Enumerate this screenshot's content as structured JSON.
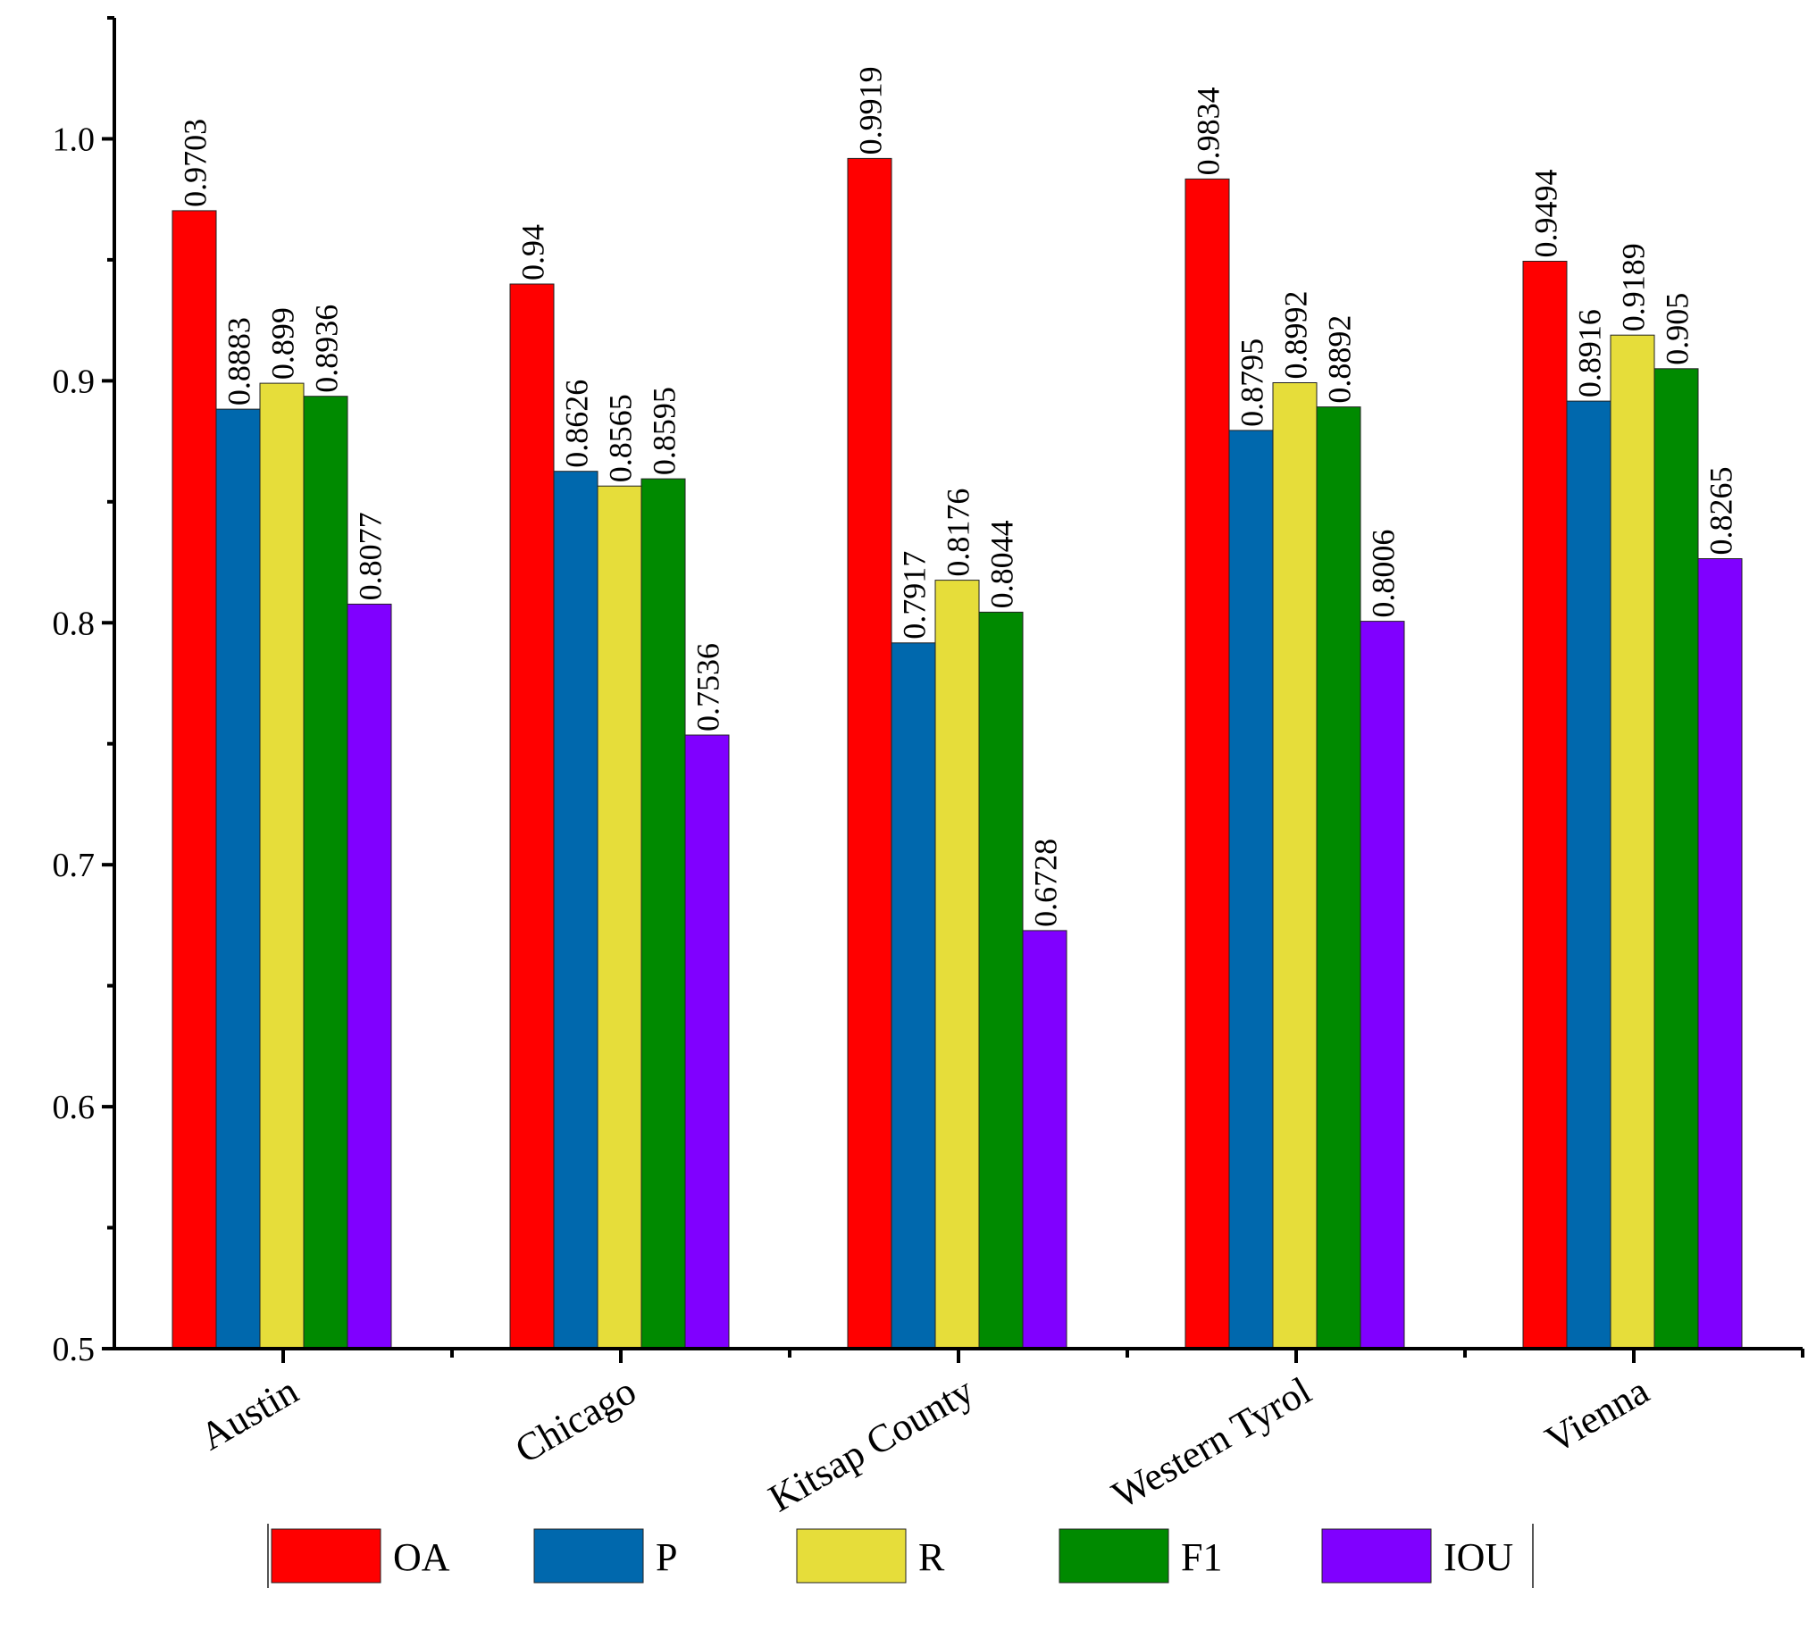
{
  "chart_data": {
    "type": "bar",
    "title": "",
    "xlabel": "",
    "ylabel": "",
    "categories": [
      "Austin",
      "Chicago",
      "Kitsap County",
      "Western Tyrol",
      "Vienna"
    ],
    "series": [
      {
        "name": "OA",
        "color": "#ff0000",
        "values": [
          0.9703,
          0.94,
          0.9919,
          0.9834,
          0.9494
        ]
      },
      {
        "name": "P",
        "color": "#0068ad",
        "values": [
          0.8883,
          0.8626,
          0.7917,
          0.8795,
          0.8916
        ]
      },
      {
        "name": "R",
        "color": "#e6dd3a",
        "values": [
          0.899,
          0.8565,
          0.8176,
          0.8992,
          0.9189
        ]
      },
      {
        "name": "F1",
        "color": "#008a00",
        "values": [
          0.8936,
          0.8595,
          0.8044,
          0.8892,
          0.905
        ]
      },
      {
        "name": "IOU",
        "color": "#8000ff",
        "values": [
          0.8077,
          0.7536,
          0.6728,
          0.8006,
          0.8265
        ]
      }
    ],
    "data_labels": [
      [
        "0.9703",
        "0.94",
        "0.9919",
        "0.9834",
        "0.9494"
      ],
      [
        "0.8883",
        "0.8626",
        "0.7917",
        "0.8795",
        "0.8916"
      ],
      [
        "0.899",
        "0.8565",
        "0.8176",
        "0.8992",
        "0.9189"
      ],
      [
        "0.8936",
        "0.8595",
        "0.8044",
        "0.8892",
        "0.905"
      ],
      [
        "0.8077",
        "0.7536",
        "0.6728",
        "0.8006",
        "0.8265"
      ]
    ],
    "ylim": [
      0.5,
      1.05
    ],
    "yticks": [
      0.5,
      0.6,
      0.7,
      0.8,
      0.9,
      1.0
    ],
    "ytick_labels": [
      "0.5",
      "0.6",
      "0.7",
      "0.8",
      "0.9",
      "1.0"
    ],
    "grid": false,
    "legend_position": "bottom"
  }
}
